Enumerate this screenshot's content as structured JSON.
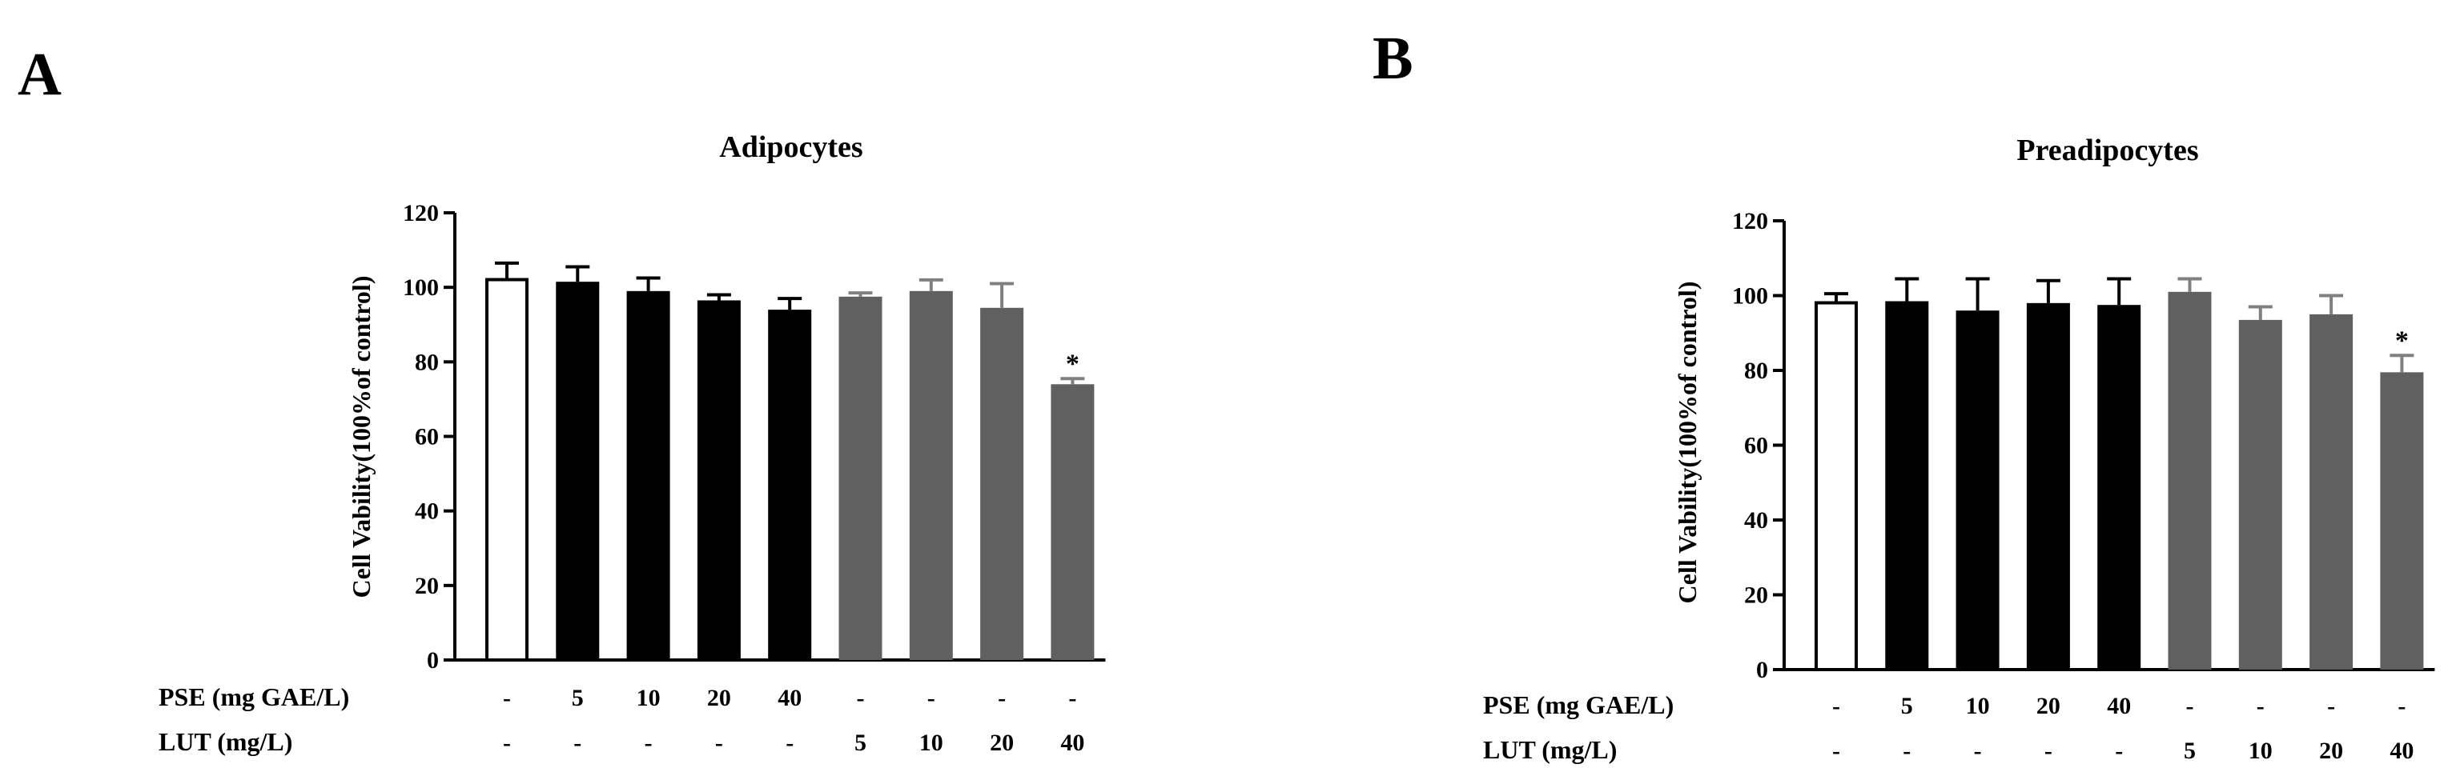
{
  "panels": [
    {
      "letter": "A",
      "pse_label": "PSE  (mg GAE/L)",
      "lut_label": "LUT (mg/L)",
      "pse_doses": [
        "-",
        "5",
        "10",
        "20",
        "40",
        "-",
        "-",
        "-",
        "-"
      ],
      "lut_doses": [
        "-",
        "-",
        "-",
        "-",
        "-",
        "5",
        "10",
        "20",
        "40"
      ]
    },
    {
      "letter": "B",
      "pse_label": "PSE  (mg GAE/L)",
      "lut_label": "LUT (mg/L)",
      "pse_doses": [
        "-",
        "5",
        "10",
        "20",
        "40",
        "-",
        "-",
        "-",
        "-"
      ],
      "lut_doses": [
        "-",
        "-",
        "-",
        "-",
        "-",
        "5",
        "10",
        "20",
        "40"
      ]
    }
  ],
  "colors": {
    "control": "#ffffff",
    "pse": "#000000",
    "lut": "#606060",
    "lut_error": "#808080"
  },
  "chart_data": [
    {
      "type": "bar",
      "title": "Adipocytes",
      "ylabel": "Cell Vability(100%of control)",
      "ylim": [
        0,
        120
      ],
      "yticks": [
        0,
        20,
        40,
        60,
        80,
        100,
        120
      ],
      "groups": [
        "control",
        "pse",
        "pse",
        "pse",
        "pse",
        "lut",
        "lut",
        "lut",
        "lut"
      ],
      "values": [
        102.5,
        101.5,
        99,
        96.5,
        94,
        97.5,
        99,
        94.5,
        74
      ],
      "errors": [
        4,
        4,
        3.5,
        1.5,
        3,
        1,
        3,
        6.5,
        1.5
      ],
      "annotations": [
        "",
        "",
        "",
        "",
        "",
        "",
        "",
        "",
        "*"
      ]
    },
    {
      "type": "bar",
      "title": "Preadipocytes",
      "ylabel": "Cell Vability(100%of control)",
      "ylim": [
        0,
        120
      ],
      "yticks": [
        0,
        20,
        40,
        60,
        80,
        100,
        120
      ],
      "groups": [
        "control",
        "pse",
        "pse",
        "pse",
        "pse",
        "lut",
        "lut",
        "lut",
        "lut"
      ],
      "values": [
        98.5,
        98.5,
        96,
        98,
        97.5,
        101,
        93.5,
        95,
        79.5
      ],
      "errors": [
        2,
        6,
        8.5,
        6,
        7,
        3.5,
        3.5,
        5,
        4.5
      ],
      "annotations": [
        "",
        "",
        "",
        "",
        "",
        "",
        "",
        "",
        "*"
      ]
    }
  ]
}
